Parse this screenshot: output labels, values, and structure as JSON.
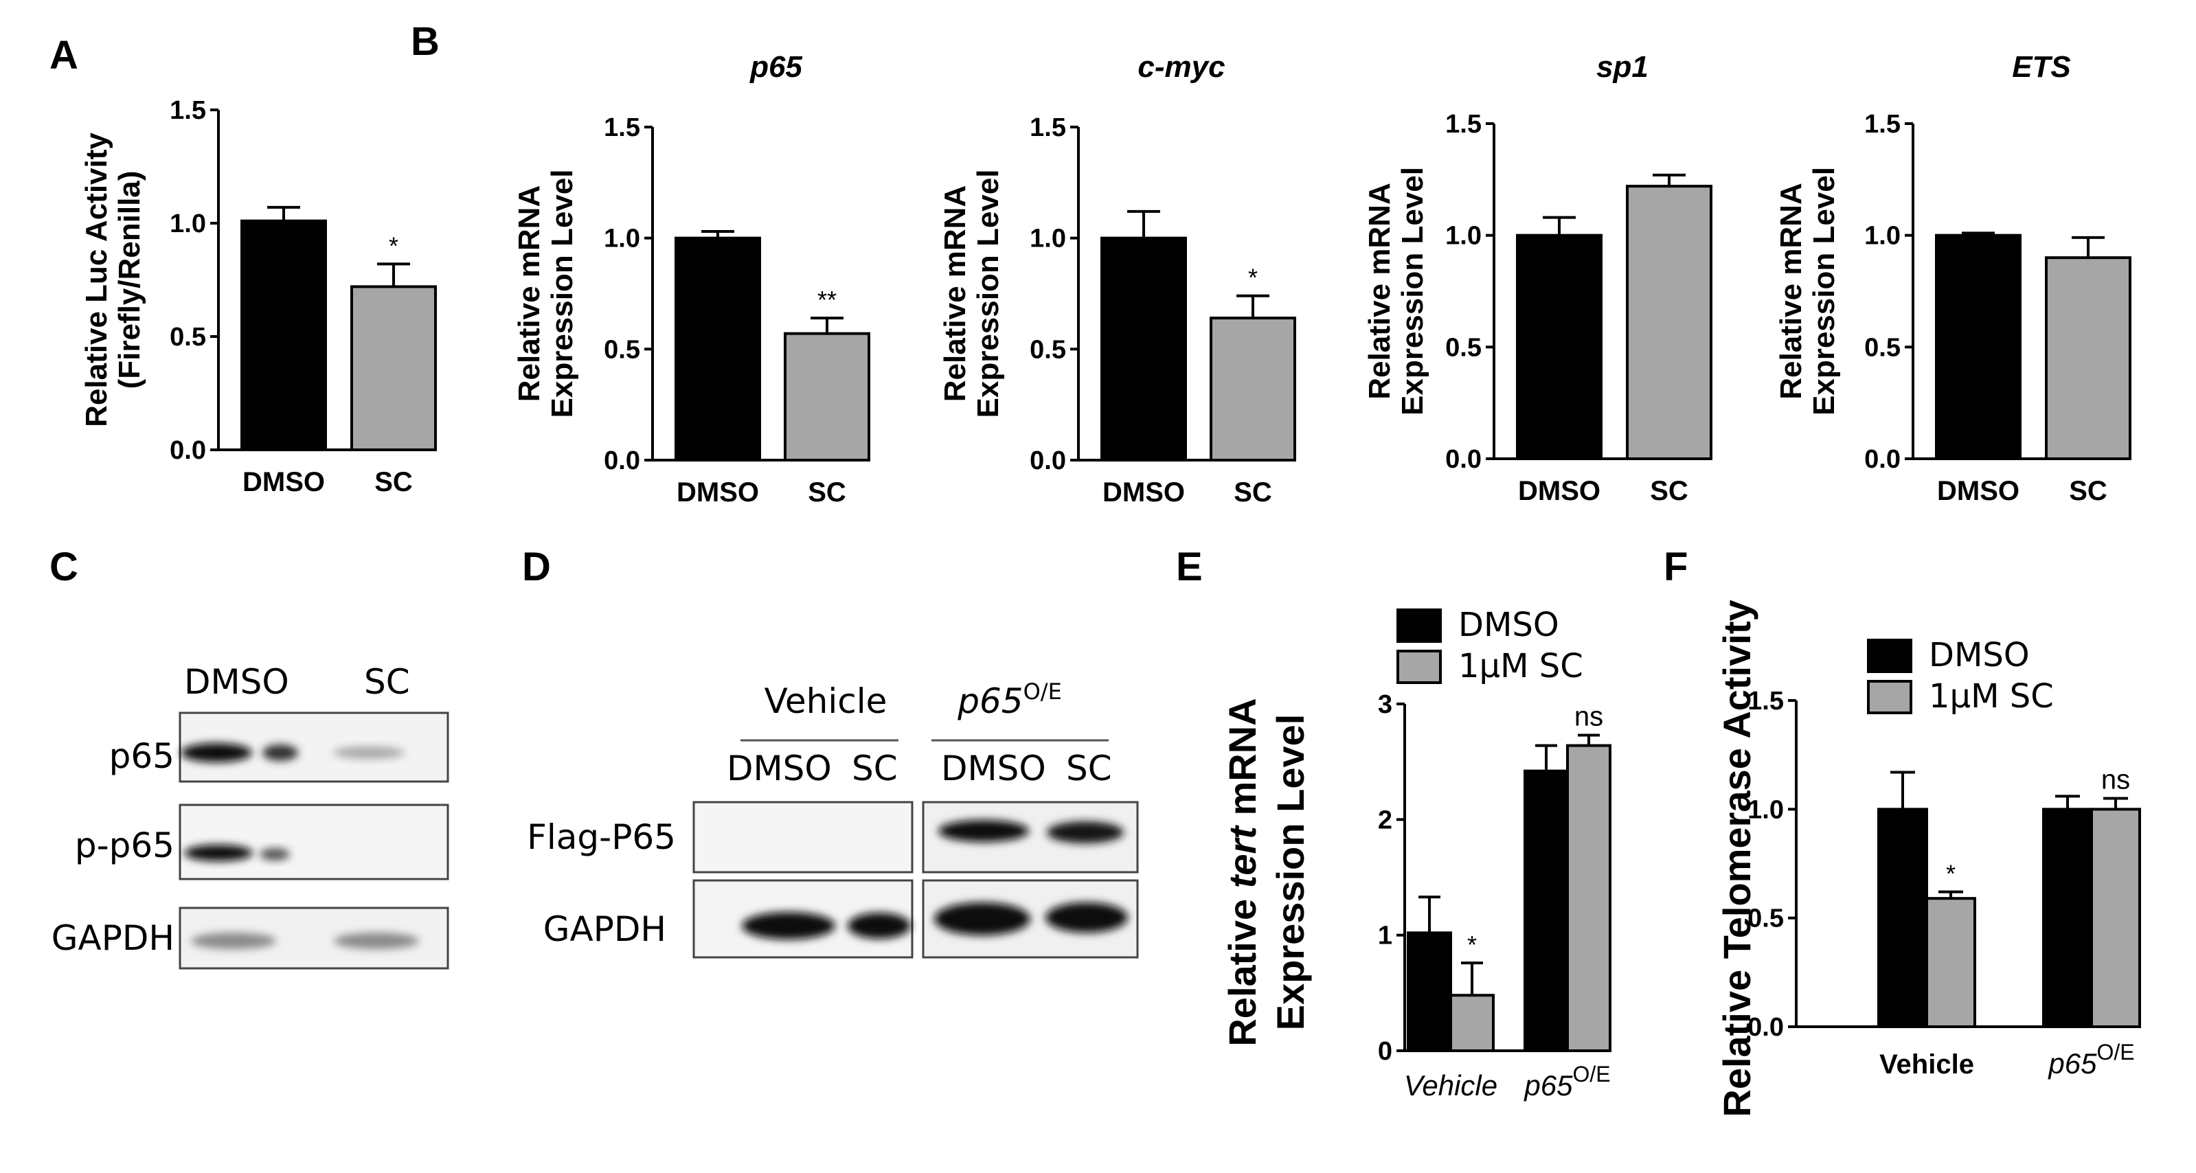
{
  "panels": {
    "A": "A",
    "B": "B",
    "C": "C",
    "D": "D",
    "E": "E",
    "F": "F"
  },
  "chart_data": [
    {
      "id": "A",
      "type": "bar",
      "title": "",
      "ylabel": [
        "Relative Luc Activity",
        "(Firefly/Renilla)"
      ],
      "categories": [
        "DMSO",
        "SC"
      ],
      "values": [
        1.01,
        0.72
      ],
      "errors": [
        0.06,
        0.1
      ],
      "colors": [
        "#000000",
        "#a6a6a6"
      ],
      "annotations": [
        "",
        "*"
      ],
      "ylim": [
        0,
        1.5
      ],
      "yticks": [
        "0.0",
        "0.5",
        "1.0",
        "1.5"
      ]
    },
    {
      "id": "B1",
      "type": "bar",
      "title": "p65",
      "ylabel": [
        "Relative mRNA",
        "Expression Level"
      ],
      "categories": [
        "DMSO",
        "SC"
      ],
      "values": [
        1.0,
        0.57
      ],
      "errors": [
        0.03,
        0.07
      ],
      "colors": [
        "#000000",
        "#a6a6a6"
      ],
      "annotations": [
        "",
        "**"
      ],
      "ylim": [
        0,
        1.5
      ],
      "yticks": [
        "0.0",
        "0.5",
        "1.0",
        "1.5"
      ]
    },
    {
      "id": "B2",
      "type": "bar",
      "title": "c-myc",
      "ylabel": [
        "Relative mRNA",
        "Expression Level"
      ],
      "categories": [
        "DMSO",
        "SC"
      ],
      "values": [
        1.0,
        0.64
      ],
      "errors": [
        0.12,
        0.1
      ],
      "colors": [
        "#000000",
        "#a6a6a6"
      ],
      "annotations": [
        "",
        "*"
      ],
      "ylim": [
        0,
        1.5
      ],
      "yticks": [
        "0.0",
        "0.5",
        "1.0",
        "1.5"
      ]
    },
    {
      "id": "B3",
      "type": "bar",
      "title": "sp1",
      "ylabel": [
        "Relative mRNA",
        "Expression Level"
      ],
      "categories": [
        "DMSO",
        "SC"
      ],
      "values": [
        1.0,
        1.22
      ],
      "errors": [
        0.08,
        0.05
      ],
      "colors": [
        "#000000",
        "#a6a6a6"
      ],
      "annotations": [
        "",
        ""
      ],
      "ylim": [
        0,
        1.5
      ],
      "yticks": [
        "0.0",
        "0.5",
        "1.0",
        "1.5"
      ]
    },
    {
      "id": "B4",
      "type": "bar",
      "title": "ETS",
      "ylabel": [
        "Relative mRNA",
        "Expression Level"
      ],
      "categories": [
        "DMSO",
        "SC"
      ],
      "values": [
        1.0,
        0.9
      ],
      "errors": [
        0.01,
        0.09
      ],
      "colors": [
        "#000000",
        "#a6a6a6"
      ],
      "annotations": [
        "",
        ""
      ],
      "ylim": [
        0,
        1.5
      ],
      "yticks": [
        "0.0",
        "0.5",
        "1.0",
        "1.5"
      ]
    },
    {
      "id": "E",
      "type": "bar",
      "ylabel_parts": [
        "Relative ",
        "tert",
        " mRNA"
      ],
      "ylabel2": "Expression Level",
      "categories": [
        "Vehicle",
        "p65"
      ],
      "category_sup": [
        "",
        "O/E"
      ],
      "series": [
        {
          "name": "DMSO",
          "values": [
            1.02,
            2.42
          ],
          "errors": [
            0.31,
            0.22
          ],
          "color": "#000000"
        },
        {
          "name": "1μM SC",
          "values": [
            0.48,
            2.64
          ],
          "errors": [
            0.28,
            0.09
          ],
          "color": "#a6a6a6"
        }
      ],
      "annotations": [
        "*",
        "ns"
      ],
      "ylim": [
        0,
        3
      ],
      "yticks": [
        "0",
        "1",
        "2",
        "3"
      ]
    },
    {
      "id": "F",
      "type": "bar",
      "ylabel": "Relative Telomerase Activity",
      "categories": [
        "Vehicle",
        "p65"
      ],
      "category_sup": [
        "",
        "O/E"
      ],
      "series": [
        {
          "name": "DMSO",
          "values": [
            1.0,
            1.0
          ],
          "errors": [
            0.17,
            0.06
          ],
          "color": "#000000"
        },
        {
          "name": "1μM SC",
          "values": [
            0.59,
            1.0
          ],
          "errors": [
            0.03,
            0.05
          ],
          "color": "#a6a6a6"
        }
      ],
      "annotations": [
        "*",
        "ns"
      ],
      "ylim": [
        0,
        1.5
      ],
      "yticks": [
        "0.0",
        "0.5",
        "1.0",
        "1.5"
      ]
    }
  ],
  "blot_C": {
    "columns": [
      "DMSO",
      "SC"
    ],
    "rows": [
      "p65",
      "p-p65",
      "GAPDH"
    ]
  },
  "blot_D": {
    "groups": [
      "Vehicle",
      "p65"
    ],
    "group_sup": [
      "",
      "O/E"
    ],
    "columns": [
      "DMSO",
      "SC",
      "DMSO",
      "SC"
    ],
    "rows": [
      "Flag-P65",
      "GAPDH"
    ]
  }
}
